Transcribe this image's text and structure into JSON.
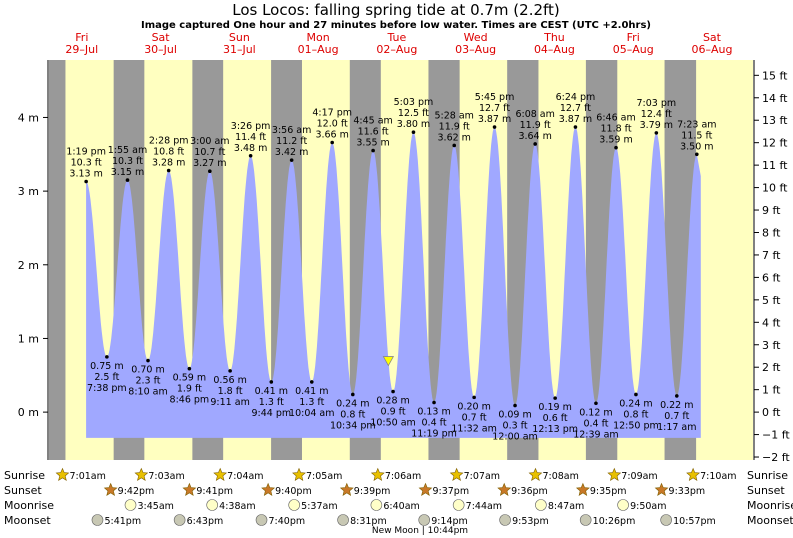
{
  "title": "Los Locos: falling  spring tide at 0.7m (2.2ft)",
  "subtitle": "Image captured One hour and 27 minutes before low water. Times are CEST (UTC +2.0hrs)",
  "days": [
    {
      "name": "Fri",
      "date": "29–Jul"
    },
    {
      "name": "Sat",
      "date": "30–Jul"
    },
    {
      "name": "Sun",
      "date": "31–Jul"
    },
    {
      "name": "Mon",
      "date": "01–Aug"
    },
    {
      "name": "Tue",
      "date": "02–Aug"
    },
    {
      "name": "Wed",
      "date": "03–Aug"
    },
    {
      "name": "Thu",
      "date": "04–Aug"
    },
    {
      "name": "Fri",
      "date": "05–Aug"
    },
    {
      "name": "Sat",
      "date": "06–Aug"
    }
  ],
  "row_labels": {
    "sunrise": "Sunrise",
    "sunset": "Sunset",
    "moonrise": "Moonrise",
    "moonset": "Moonset"
  },
  "sunrise": [
    "7:01am",
    "7:03am",
    "7:04am",
    "7:05am",
    "7:06am",
    "7:07am",
    "7:08am",
    "7:09am",
    "7:10am"
  ],
  "sunset": [
    "9:42pm",
    "9:41pm",
    "9:40pm",
    "9:39pm",
    "9:37pm",
    "9:36pm",
    "9:35pm",
    "9:33pm"
  ],
  "moonrise": [
    "3:45am",
    "4:38am",
    "5:37am",
    "6:40am",
    "7:44am",
    "8:47am",
    "9:50am"
  ],
  "moonset": [
    "5:41pm",
    "6:43pm",
    "7:40pm",
    "8:31pm",
    "9:14pm",
    "9:53pm",
    "10:26pm",
    "10:57pm"
  ],
  "moon_phase": {
    "label": "New Moon",
    "time": "10:44pm"
  },
  "colors": {
    "night": "#999999",
    "day": "#ffffc0",
    "tide": "#a0a8ff",
    "day_label": "#dd0000",
    "sun_icon": "#e8c000",
    "sunset_icon": "#c87828",
    "moonrise_icon": "#ffffc8",
    "moonset_icon": "#c8c8b4",
    "marker": "#ffff00"
  },
  "chart_data": {
    "type": "area",
    "y_left_unit": "m",
    "y_right_unit": "ft",
    "y_left_ticks": [
      0,
      1,
      2,
      3,
      4
    ],
    "y_right_ticks": [
      -2,
      -1,
      0,
      1,
      2,
      3,
      4,
      5,
      6,
      7,
      8,
      9,
      10,
      11,
      12,
      13,
      14,
      15
    ],
    "ylim_m": [
      -0.65,
      4.78
    ],
    "current": {
      "time": "Tue 02-Aug 09:23",
      "height_m": 0.7
    },
    "tides": [
      {
        "type": "high",
        "time": "1:19 pm",
        "ft": "10.3 ft",
        "m": 3.13,
        "m_label": "3.13 m"
      },
      {
        "type": "low",
        "time": "7:38 pm",
        "ft": "2.5 ft",
        "m": 0.75,
        "m_label": "0.75 m"
      },
      {
        "type": "high",
        "time": "1:55 am",
        "ft": "10.3 ft",
        "m": 3.15,
        "m_label": "3.15 m"
      },
      {
        "type": "low",
        "time": "8:10 am",
        "ft": "2.3 ft",
        "m": 0.7,
        "m_label": "0.70 m"
      },
      {
        "type": "high",
        "time": "2:28 pm",
        "ft": "10.8 ft",
        "m": 3.28,
        "m_label": "3.28 m"
      },
      {
        "type": "low",
        "time": "8:46 pm",
        "ft": "1.9 ft",
        "m": 0.59,
        "m_label": "0.59 m"
      },
      {
        "type": "high",
        "time": "3:00 am",
        "ft": "10.7 ft",
        "m": 3.27,
        "m_label": "3.27 m"
      },
      {
        "type": "low",
        "time": "9:11 am",
        "ft": "1.8 ft",
        "m": 0.56,
        "m_label": "0.56 m"
      },
      {
        "type": "high",
        "time": "3:26 pm",
        "ft": "11.4 ft",
        "m": 3.48,
        "m_label": "3.48 m"
      },
      {
        "type": "low",
        "time": "9:44 pm",
        "ft": "1.3 ft",
        "m": 0.41,
        "m_label": "0.41 m"
      },
      {
        "type": "high",
        "time": "3:56 am",
        "ft": "11.2 ft",
        "m": 3.42,
        "m_label": "3.42 m"
      },
      {
        "type": "low",
        "time": "10:04 am",
        "ft": "1.3 ft",
        "m": 0.41,
        "m_label": "0.41 m"
      },
      {
        "type": "high",
        "time": "4:17 pm",
        "ft": "12.0 ft",
        "m": 3.66,
        "m_label": "3.66 m"
      },
      {
        "type": "low",
        "time": "10:34 pm",
        "ft": "0.8 ft",
        "m": 0.24,
        "m_label": "0.24 m"
      },
      {
        "type": "high",
        "time": "4:45 am",
        "ft": "11.6 ft",
        "m": 3.55,
        "m_label": "3.55 m"
      },
      {
        "type": "low",
        "time": "10:50 am",
        "ft": "0.9 ft",
        "m": 0.28,
        "m_label": "0.28 m"
      },
      {
        "type": "high",
        "time": "5:03 pm",
        "ft": "12.5 ft",
        "m": 3.8,
        "m_label": "3.80 m"
      },
      {
        "type": "low",
        "time": "11:19 pm",
        "ft": "0.4 ft",
        "m": 0.13,
        "m_label": "0.13 m"
      },
      {
        "type": "high",
        "time": "5:28 am",
        "ft": "11.9 ft",
        "m": 3.62,
        "m_label": "3.62 m"
      },
      {
        "type": "low",
        "time": "11:32 am",
        "ft": "0.7 ft",
        "m": 0.2,
        "m_label": "0.20 m"
      },
      {
        "type": "high",
        "time": "5:45 pm",
        "ft": "12.7 ft",
        "m": 3.87,
        "m_label": "3.87 m"
      },
      {
        "type": "low",
        "time": "12:00 am",
        "ft": "0.3 ft",
        "m": 0.09,
        "m_label": "0.09 m"
      },
      {
        "type": "high",
        "time": "6:08 am",
        "ft": "11.9 ft",
        "m": 3.64,
        "m_label": "3.64 m"
      },
      {
        "type": "low",
        "time": "12:13 pm",
        "ft": "0.6 ft",
        "m": 0.19,
        "m_label": "0.19 m"
      },
      {
        "type": "high",
        "time": "6:24 pm",
        "ft": "12.7 ft",
        "m": 3.87,
        "m_label": "3.87 m"
      },
      {
        "type": "low",
        "time": "12:39 am",
        "ft": "0.4 ft",
        "m": 0.12,
        "m_label": "0.12 m"
      },
      {
        "type": "high",
        "time": "6:46 am",
        "ft": "11.8 ft",
        "m": 3.59,
        "m_label": "3.59 m"
      },
      {
        "type": "low",
        "time": "12:50 pm",
        "ft": "0.8 ft",
        "m": 0.24,
        "m_label": "0.24 m"
      },
      {
        "type": "high",
        "time": "7:03 pm",
        "ft": "12.4 ft",
        "m": 3.79,
        "m_label": "3.79 m"
      },
      {
        "type": "low",
        "time": "1:17 am",
        "ft": "0.7 ft",
        "m": 0.22,
        "m_label": "0.22 m"
      },
      {
        "type": "high",
        "time": "7:23 am",
        "ft": "11.5 ft",
        "m": 3.5,
        "m_label": "3.50 m"
      }
    ]
  }
}
